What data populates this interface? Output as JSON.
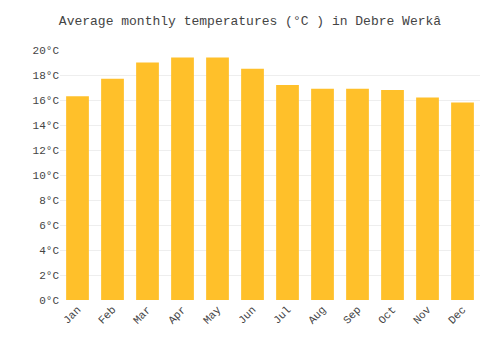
{
  "chart_data": {
    "type": "bar",
    "title": "Average monthly temperatures (°C ) in Debre Werkâ",
    "categories": [
      "Jan",
      "Feb",
      "Mar",
      "Apr",
      "May",
      "Jun",
      "Jul",
      "Aug",
      "Sep",
      "Oct",
      "Nov",
      "Dec"
    ],
    "values": [
      16.3,
      17.7,
      19.0,
      19.4,
      19.4,
      18.5,
      17.2,
      16.9,
      16.9,
      16.8,
      16.2,
      15.8
    ],
    "color": "#FFC02A",
    "ylim": [
      0,
      20
    ],
    "yticks": [
      {
        "value": 0,
        "label": "0°C"
      },
      {
        "value": 2,
        "label": "2°C"
      },
      {
        "value": 4,
        "label": "4°C"
      },
      {
        "value": 6,
        "label": "6°C"
      },
      {
        "value": 8,
        "label": "8°C"
      },
      {
        "value": 10,
        "label": "10°C"
      },
      {
        "value": 12,
        "label": "12°C"
      },
      {
        "value": 14,
        "label": "14°C"
      },
      {
        "value": 16,
        "label": "16°C"
      },
      {
        "value": 18,
        "label": "18°C"
      },
      {
        "value": 20,
        "label": "20°C"
      }
    ],
    "grid": true
  }
}
